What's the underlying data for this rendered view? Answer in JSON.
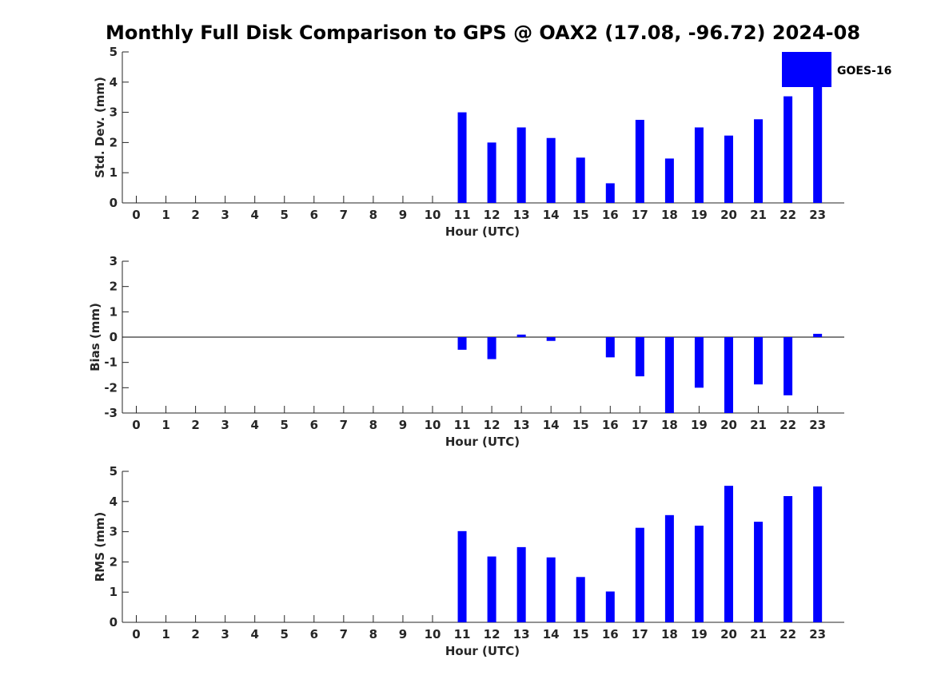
{
  "title": "Monthly Full Disk Comparison to GPS @ OAX2 (17.08, -96.72) 2024-08",
  "legend": {
    "label": "GOES-16",
    "color": "#0000ff"
  },
  "chart_data": [
    {
      "type": "bar",
      "xlabel": "Hour (UTC)",
      "ylabel": "Std. Dev. (mm)",
      "ylim": [
        0,
        5
      ],
      "yticks": [
        "0",
        "1",
        "2",
        "3",
        "4",
        "5"
      ],
      "categories": [
        "0",
        "1",
        "2",
        "3",
        "4",
        "5",
        "6",
        "7",
        "8",
        "9",
        "10",
        "11",
        "12",
        "13",
        "14",
        "15",
        "16",
        "17",
        "18",
        "19",
        "20",
        "21",
        "22",
        "23"
      ],
      "series": [
        {
          "name": "GOES-16",
          "values": [
            null,
            null,
            null,
            null,
            null,
            null,
            null,
            null,
            null,
            null,
            null,
            3.0,
            2.0,
            2.5,
            2.15,
            1.5,
            0.65,
            2.75,
            1.47,
            2.5,
            2.23,
            2.77,
            3.53,
            3.85
          ]
        }
      ],
      "grid": false
    },
    {
      "type": "bar",
      "xlabel": "Hour (UTC)",
      "ylabel": "Bias (mm)",
      "ylim": [
        -3,
        3
      ],
      "yticks": [
        "-3",
        "-2",
        "-1",
        "0",
        "1",
        "2",
        "3"
      ],
      "categories": [
        "0",
        "1",
        "2",
        "3",
        "4",
        "5",
        "6",
        "7",
        "8",
        "9",
        "10",
        "11",
        "12",
        "13",
        "14",
        "15",
        "16",
        "17",
        "18",
        "19",
        "20",
        "21",
        "22",
        "23"
      ],
      "series": [
        {
          "name": "GOES-16",
          "values": [
            null,
            null,
            null,
            null,
            null,
            null,
            null,
            null,
            null,
            null,
            null,
            -0.5,
            -0.87,
            0.1,
            -0.15,
            null,
            -0.8,
            -1.55,
            -3.0,
            -2.0,
            -3.0,
            -1.87,
            -2.3,
            0.13
          ]
        }
      ],
      "grid": false
    },
    {
      "type": "bar",
      "xlabel": "Hour (UTC)",
      "ylabel": "RMS (mm)",
      "ylim": [
        0,
        5
      ],
      "yticks": [
        "0",
        "1",
        "2",
        "3",
        "4",
        "5"
      ],
      "categories": [
        "0",
        "1",
        "2",
        "3",
        "4",
        "5",
        "6",
        "7",
        "8",
        "9",
        "10",
        "11",
        "12",
        "13",
        "14",
        "15",
        "16",
        "17",
        "18",
        "19",
        "20",
        "21",
        "22",
        "23"
      ],
      "series": [
        {
          "name": "GOES-16",
          "values": [
            null,
            null,
            null,
            null,
            null,
            null,
            null,
            null,
            null,
            null,
            null,
            3.02,
            2.18,
            2.49,
            2.15,
            1.5,
            1.02,
            3.13,
            3.55,
            3.2,
            4.52,
            3.33,
            4.18,
            4.5
          ]
        }
      ],
      "grid": false
    }
  ]
}
